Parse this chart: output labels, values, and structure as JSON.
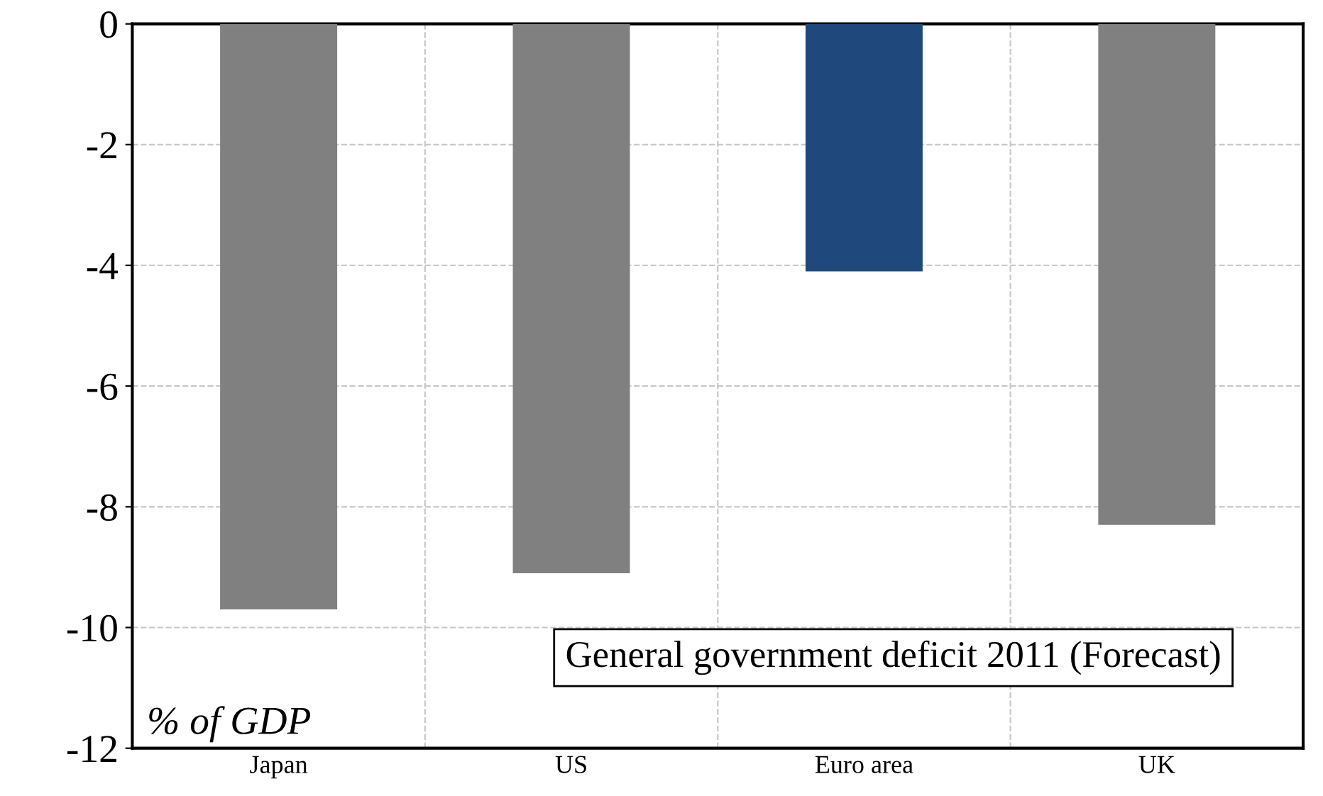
{
  "chart_data": {
    "type": "bar",
    "categories": [
      "Japan",
      "US",
      "Euro area",
      "UK"
    ],
    "values": [
      -9.7,
      -9.1,
      -4.1,
      -8.3
    ],
    "colors": [
      "#808080",
      "#808080",
      "#1f497d",
      "#808080"
    ],
    "ylim": [
      -12,
      0
    ],
    "yticks": [
      -12,
      -10,
      -8,
      -6,
      -4,
      -2,
      0
    ],
    "grid": true,
    "annotations": [
      "General government deficit 2011 (Forecast)",
      "% of GDP"
    ]
  }
}
